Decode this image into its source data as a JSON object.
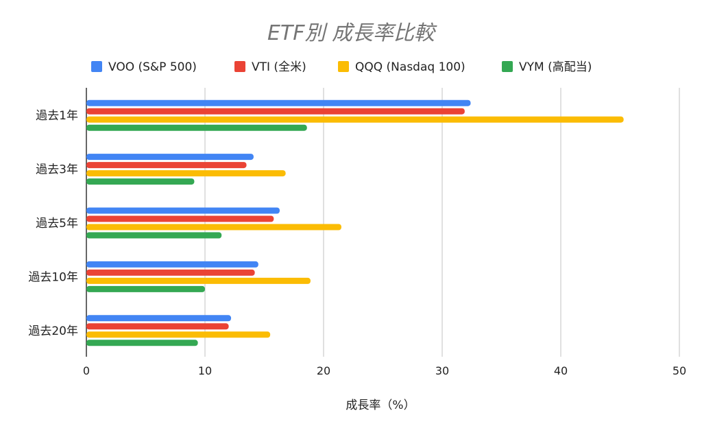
{
  "chart_data": {
    "type": "bar",
    "orientation": "horizontal",
    "title": "ETF別 成長率比較",
    "xlabel": "成長率（%）",
    "ylabel": "",
    "xlim": [
      0,
      50
    ],
    "xticks": [
      "0",
      "10",
      "20",
      "30",
      "40",
      "50"
    ],
    "grid": true,
    "legend_position": "top",
    "categories": [
      "過去1年",
      "過去3年",
      "過去5年",
      "過去10年",
      "過去20年"
    ],
    "series": [
      {
        "name": "VOO (S&P 500)",
        "color": "#4285F4",
        "values": [
          32.4,
          14.1,
          16.3,
          14.5,
          12.2
        ]
      },
      {
        "name": "VTI (全米)",
        "color": "#EA4335",
        "values": [
          31.9,
          13.5,
          15.8,
          14.2,
          12.0
        ]
      },
      {
        "name": "QQQ (Nasdaq 100)",
        "color": "#FBBC04",
        "values": [
          45.3,
          16.8,
          21.5,
          18.9,
          15.5
        ]
      },
      {
        "name": "VYM (高配当)",
        "color": "#34A853",
        "values": [
          18.6,
          9.1,
          11.4,
          10.0,
          9.4
        ]
      }
    ]
  }
}
